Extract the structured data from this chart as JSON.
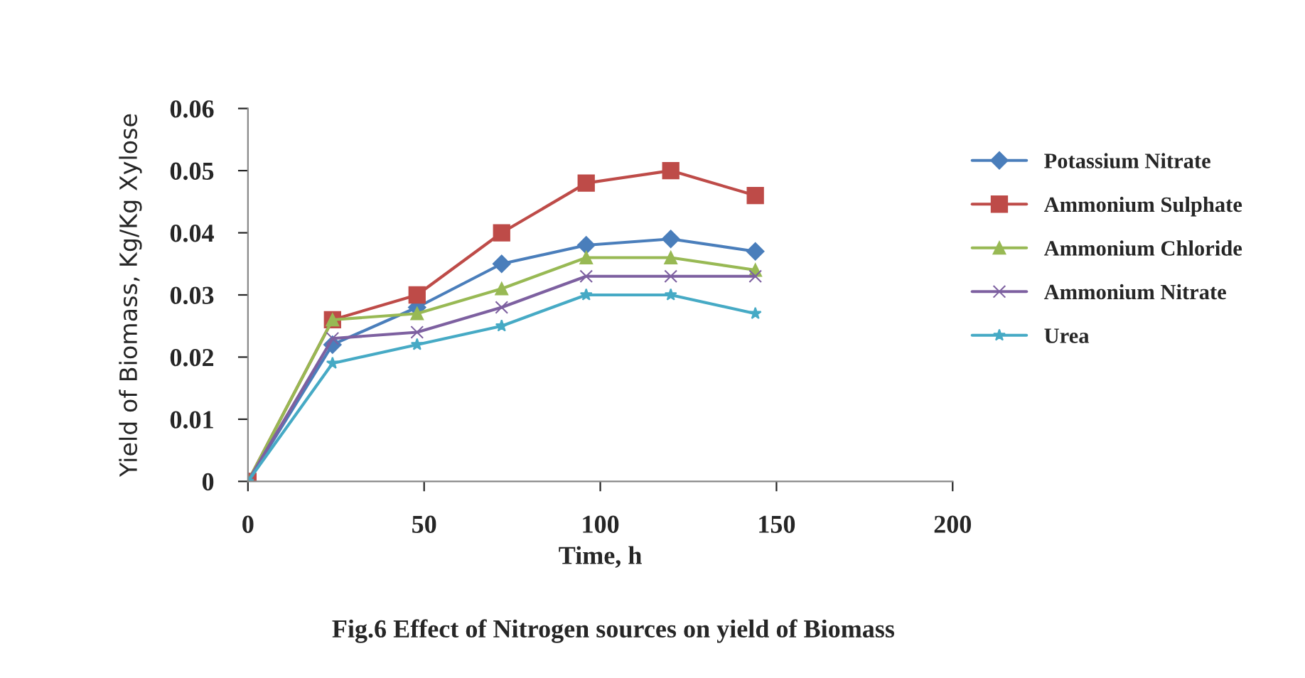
{
  "chart_data": {
    "type": "line",
    "title": "Fig.6 Effect of Nitrogen sources on yield of Biomass",
    "xlabel": "Time, h",
    "ylabel": "Yield of Biomass, Kg/Kg Xylose",
    "x": [
      0,
      24,
      48,
      72,
      96,
      120,
      144
    ],
    "series": [
      {
        "name": "Potassium Nitrate",
        "color": "#4a7ebb",
        "marker": "diamond",
        "values": [
          0,
          0.022,
          0.028,
          0.035,
          0.038,
          0.039,
          0.037
        ]
      },
      {
        "name": "Ammonium Sulphate",
        "color": "#be4b48",
        "marker": "square",
        "values": [
          0,
          0.026,
          0.03,
          0.04,
          0.048,
          0.05,
          0.046
        ]
      },
      {
        "name": "Ammonium Chloride",
        "color": "#98b954",
        "marker": "triangle",
        "values": [
          0,
          0.026,
          0.027,
          0.031,
          0.036,
          0.036,
          0.034
        ]
      },
      {
        "name": "Ammonium Nitrate",
        "color": "#7d60a0",
        "marker": "cross",
        "values": [
          0,
          0.023,
          0.024,
          0.028,
          0.033,
          0.033,
          0.033
        ]
      },
      {
        "name": "Urea",
        "color": "#46aac5",
        "marker": "star",
        "values": [
          0,
          0.019,
          0.022,
          0.025,
          0.03,
          0.03,
          0.027
        ]
      }
    ],
    "xlim": [
      0,
      200
    ],
    "xticks": [
      0,
      50,
      100,
      150,
      200
    ],
    "ylim": [
      0,
      0.06
    ],
    "yticks": [
      0,
      0.01,
      0.02,
      0.03,
      0.04,
      0.05,
      0.06
    ],
    "grid": false,
    "legend": "right",
    "line_style": "solid"
  }
}
